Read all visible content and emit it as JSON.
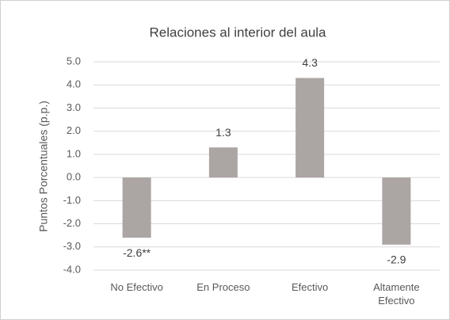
{
  "chart_data": {
    "type": "bar",
    "title": "Relaciones al interior del aula",
    "y_label": "Puntos Porcentuales (p.p.)",
    "categories": [
      "No Efectivo",
      "En Proceso",
      "Efectivo",
      "Altamente Efectivo"
    ],
    "values": [
      -2.6,
      1.3,
      4.3,
      -2.9
    ],
    "value_labels": [
      "-2.6**",
      "1.3",
      "4.3",
      "-2.9"
    ],
    "color": "#aba5a3",
    "ylim": [
      -4,
      5
    ],
    "yticks": [
      {
        "value": 5,
        "label": "5.0"
      },
      {
        "value": 4,
        "label": "4.0"
      },
      {
        "value": 3,
        "label": "3.0"
      },
      {
        "value": 2,
        "label": "2.0"
      },
      {
        "value": 1,
        "label": "1.0"
      },
      {
        "value": 0,
        "label": "0.0"
      },
      {
        "value": -1,
        "label": "-1.0"
      },
      {
        "value": -2,
        "label": "-2.0"
      },
      {
        "value": -3,
        "label": "-3.0"
      },
      {
        "value": -4,
        "label": "-4.0"
      }
    ],
    "grid": true
  }
}
